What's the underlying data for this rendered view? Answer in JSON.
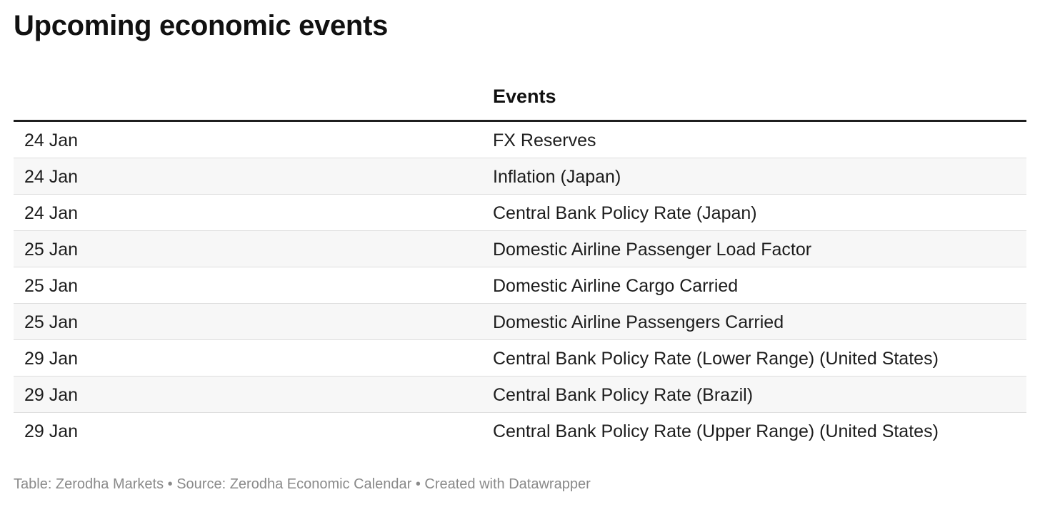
{
  "title": "Upcoming economic events",
  "table": {
    "columns": [
      "",
      "Events"
    ],
    "rows": [
      {
        "date": "24 Jan",
        "event": "FX Reserves"
      },
      {
        "date": "24 Jan",
        "event": "Inflation (Japan)"
      },
      {
        "date": "24 Jan",
        "event": "Central Bank Policy Rate (Japan)"
      },
      {
        "date": "25 Jan",
        "event": "Domestic Airline Passenger Load Factor"
      },
      {
        "date": "25 Jan",
        "event": "Domestic Airline Cargo Carried"
      },
      {
        "date": "25 Jan",
        "event": "Domestic Airline Passengers Carried"
      },
      {
        "date": "29 Jan",
        "event": "Central Bank Policy Rate (Lower Range) (United States)"
      },
      {
        "date": "29 Jan",
        "event": "Central Bank Policy Rate (Brazil)"
      },
      {
        "date": "29 Jan",
        "event": "Central Bank Policy Rate (Upper Range) (United States)"
      }
    ]
  },
  "footer": "Table: Zerodha Markets • Source: Zerodha Economic Calendar • Created with Datawrapper",
  "colors": {
    "header_rule": "#1f1f1f",
    "row_stripe": "#f7f7f7",
    "row_divider": "#dedede",
    "footer_text": "#8a8a8a"
  }
}
